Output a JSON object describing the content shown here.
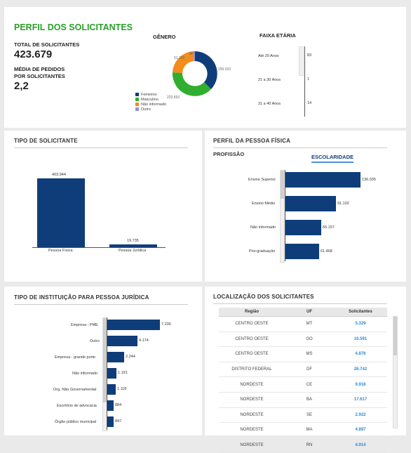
{
  "perfil": {
    "title": "PERFIL DOS SOLICITANTES",
    "total_label": "TOTAL DE SOLICITANTES",
    "total_value": "423.679",
    "media_label_1": "MÉDIA DE PEDIDOS",
    "media_label_2": "POR SOLICITANTES",
    "media_value": "2,2"
  },
  "genero": {
    "title": "GÊNERO",
    "labels": {
      "feminino": "155.010",
      "masculino": "223.553",
      "nao_informado": "51.202",
      "outro": "347"
    },
    "legend": [
      {
        "label": "Feminino",
        "color": "#0f3d7a"
      },
      {
        "label": "Masculino",
        "color": "#2fae2f"
      },
      {
        "label": "Não informado",
        "color": "#f28c1b"
      },
      {
        "label": "Outro",
        "color": "#9a8fd0"
      }
    ]
  },
  "faixa": {
    "title": "FAIXA ETÁRIA",
    "rows": [
      {
        "label": "Até 20 Anos",
        "value": "83"
      },
      {
        "label": "21 a 30 Anos",
        "value": "1"
      },
      {
        "label": "31 a 40 Anos",
        "value": "14"
      }
    ]
  },
  "tipo_solicitante": {
    "title": "TIPO DE SOLICITANTE",
    "bars": [
      {
        "label": "Pessoa Física",
        "value": "403.944"
      },
      {
        "label": "Pessoa Jurídica",
        "value": "19.735"
      }
    ]
  },
  "pessoa_fisica": {
    "title": "PERFIL DA PESSOA FÍSICA",
    "tab_profissao": "PROFISSÃO",
    "tab_escolaridade": "ESCOLARIDADE",
    "bars": [
      {
        "label": "Ensino Superior",
        "value": "136.035"
      },
      {
        "label": "Ensino Médio",
        "value": "91.102"
      },
      {
        "label": "Não informado",
        "value": "65.157"
      },
      {
        "label": "Pós-graduação",
        "value": "61.468"
      }
    ]
  },
  "instituicao": {
    "title": "TIPO DE INSTITUIÇÃO PARA PESSOA JURÍDICA",
    "bars": [
      {
        "label": "Empresa - PME",
        "value": "7.236"
      },
      {
        "label": "Outro",
        "value": "4.174"
      },
      {
        "label": "Empresa - grande porte",
        "value": "2.244"
      },
      {
        "label": "Não informado",
        "value": "1.191"
      },
      {
        "label": "Org. Não Governamental",
        "value": "1.118"
      },
      {
        "label": "Escritório de advocacia",
        "value": "884"
      },
      {
        "label": "Órgão público municipal",
        "value": "847"
      }
    ]
  },
  "localizacao": {
    "title": "LOCALIZAÇÃO DOS SOLICITANTES",
    "headers": {
      "regiao": "Região",
      "uf": "UF",
      "solicitantes": "Solicitantes"
    },
    "rows": [
      {
        "regiao": "CENTRO OESTE",
        "uf": "MT",
        "solicitantes": "5.329"
      },
      {
        "regiao": "CENTRO OESTE",
        "uf": "GO",
        "solicitantes": "10.591"
      },
      {
        "regiao": "CENTRO OESTE",
        "uf": "MS",
        "solicitantes": "4.876"
      },
      {
        "regiao": "DISTRITO FEDERAL",
        "uf": "DF",
        "solicitantes": "26.742"
      },
      {
        "regiao": "NORDESTE",
        "uf": "CE",
        "solicitantes": "9.918"
      },
      {
        "regiao": "NORDESTE",
        "uf": "BA",
        "solicitantes": "17.617"
      },
      {
        "regiao": "NORDESTE",
        "uf": "SE",
        "solicitantes": "2.922"
      },
      {
        "regiao": "NORDESTE",
        "uf": "MA",
        "solicitantes": "4.897"
      },
      {
        "regiao": "NORDESTE",
        "uf": "RN",
        "solicitantes": "4.914"
      }
    ]
  }
}
